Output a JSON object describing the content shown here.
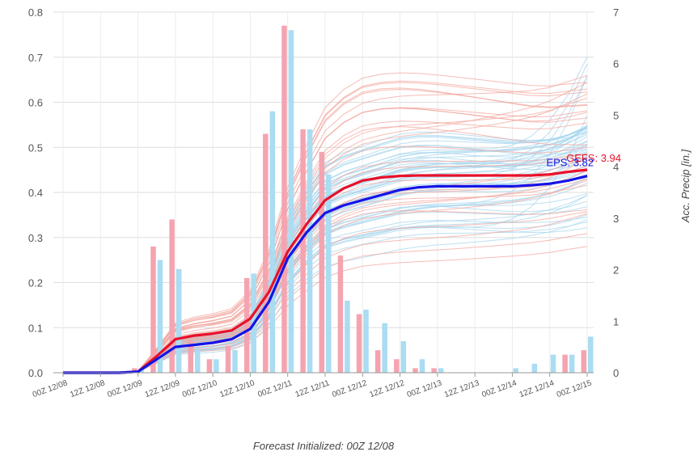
{
  "chart_data": {
    "type": "bar",
    "title": "",
    "xlabel": "Forecast Initialized: 00Z 12/08",
    "ylabel_right": "Acc. Precip [in.]",
    "ylim_left": [
      0,
      0.8
    ],
    "ylim_right": [
      0,
      7
    ],
    "yticks_left": [
      "0.0",
      "0.1",
      "0.2",
      "0.3",
      "0.4",
      "0.5",
      "0.6",
      "0.7",
      "0.8"
    ],
    "yticks_right": [
      "0",
      "1",
      "2",
      "3",
      "4",
      "5",
      "6",
      "7"
    ],
    "grid": true,
    "x_tick_labels": [
      "00Z 12/08",
      "12Z 12/08",
      "00Z 12/09",
      "12Z 12/09",
      "00Z 12/10",
      "12Z 12/10",
      "00Z 12/11",
      "12Z 12/11",
      "00Z 12/12",
      "12Z 12/12",
      "00Z 12/13",
      "12Z 12/13",
      "00Z 12/14",
      "12Z 12/14",
      "00Z 12/15"
    ],
    "x_hours": [
      0,
      12,
      24,
      36,
      48,
      60,
      72,
      84,
      96,
      108,
      120,
      132,
      144,
      156,
      168
    ],
    "colors": {
      "gefs": "#e8112a",
      "eps": "#1414e6",
      "gefs_bar": "#f4a4b0",
      "eps_bar": "#aadcf2",
      "gefs_member": "#f3a59e",
      "eps_member": "#a6d6ee",
      "grid": "#dddddd"
    },
    "bars": {
      "hours": [
        6,
        12,
        18,
        24,
        30,
        36,
        42,
        48,
        54,
        60,
        66,
        72,
        78,
        84,
        90,
        96,
        102,
        108,
        114,
        120,
        126,
        132,
        138,
        144,
        150,
        156,
        162,
        168
      ],
      "series": [
        {
          "name": "GEFS",
          "values": [
            0,
            0,
            0,
            0.01,
            0.28,
            0.34,
            0.07,
            0.03,
            0.06,
            0.21,
            0.53,
            0.77,
            0.54,
            0.49,
            0.26,
            0.13,
            0.05,
            0.03,
            0.01,
            0.01,
            0,
            0,
            0,
            0,
            0,
            0,
            0.04,
            0.05
          ]
        },
        {
          "name": "EPS",
          "values": [
            0,
            0,
            0,
            0.01,
            0.25,
            0.23,
            0.05,
            0.03,
            0.05,
            0.22,
            0.58,
            0.76,
            0.54,
            0.44,
            0.16,
            0.14,
            0.11,
            0.07,
            0.03,
            0.01,
            0,
            0,
            0,
            0.01,
            0.02,
            0.04,
            0.04,
            0.08
          ]
        }
      ]
    },
    "lines": {
      "hours": [
        0,
        6,
        12,
        18,
        24,
        30,
        36,
        42,
        48,
        54,
        60,
        66,
        72,
        78,
        84,
        90,
        96,
        102,
        108,
        114,
        120,
        126,
        132,
        138,
        144,
        150,
        156,
        162,
        168
      ],
      "series": [
        {
          "name": "GEFS",
          "label": "GEFS: 3.94",
          "values": [
            0,
            0,
            0,
            0,
            0.02,
            0.32,
            0.65,
            0.72,
            0.76,
            0.82,
            1.05,
            1.57,
            2.35,
            2.88,
            3.35,
            3.58,
            3.73,
            3.79,
            3.82,
            3.83,
            3.83,
            3.83,
            3.83,
            3.83,
            3.83,
            3.83,
            3.85,
            3.9,
            3.94
          ]
        },
        {
          "name": "EPS",
          "label": "EPS: 3.82",
          "values": [
            0,
            0,
            0,
            0,
            0.02,
            0.26,
            0.5,
            0.54,
            0.58,
            0.65,
            0.85,
            1.38,
            2.22,
            2.72,
            3.1,
            3.25,
            3.35,
            3.45,
            3.55,
            3.6,
            3.62,
            3.62,
            3.62,
            3.62,
            3.62,
            3.64,
            3.67,
            3.73,
            3.82
          ]
        }
      ]
    }
  }
}
